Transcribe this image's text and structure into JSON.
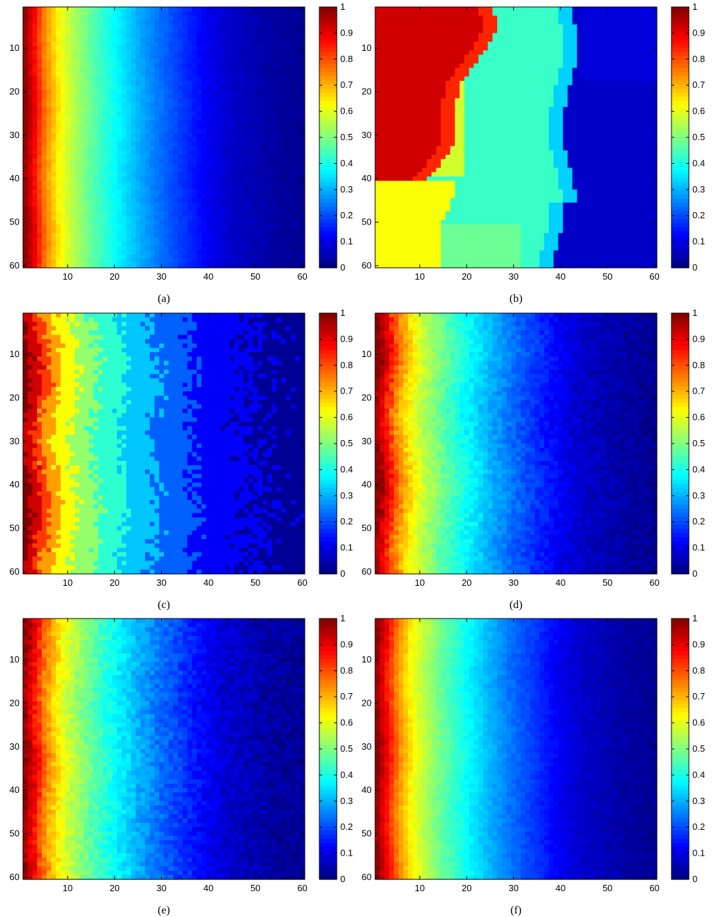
{
  "figure": {
    "panels": [
      {
        "caption": "(a)",
        "kind": "smooth",
        "noise": 0.01,
        "jitter": 0.2
      },
      {
        "caption": "(b)",
        "kind": "regions"
      },
      {
        "caption": "(c)",
        "kind": "coarse",
        "noise": 0.03,
        "jitter": 0.6
      },
      {
        "caption": "(d)",
        "kind": "smooth",
        "noise": 0.025,
        "jitter": 0.5
      },
      {
        "caption": "(e)",
        "kind": "smooth",
        "noise": 0.03,
        "jitter": 0.35
      },
      {
        "caption": "(f)",
        "kind": "smooth",
        "noise": 0.015,
        "jitter": 0.25
      }
    ]
  },
  "chart_data": {
    "type": "heatmap",
    "grid": {
      "rows": 60,
      "cols": 60
    },
    "x_ticks": [
      10,
      20,
      30,
      40,
      50,
      60
    ],
    "y_ticks": [
      10,
      20,
      30,
      40,
      50,
      60
    ],
    "xlim": [
      0.5,
      60.5
    ],
    "ylim": [
      0.5,
      60.5
    ],
    "y_direction": "top-down",
    "colorbar": {
      "colormap": "jet",
      "ticks": [
        0,
        0.1,
        0.2,
        0.3,
        0.4,
        0.5,
        0.6,
        0.7,
        0.8,
        0.9,
        1
      ],
      "tick_labels": [
        "0",
        "0.1",
        "0.2",
        "0.3",
        "0.4",
        "0.5",
        "0.6",
        "0.7",
        "0.8",
        "0.9",
        "1"
      ],
      "range": [
        0,
        1
      ],
      "placement": "right"
    },
    "column_profile": {
      "description_free": true,
      "x": [
        1,
        3,
        5,
        8,
        10,
        15,
        20,
        25,
        30,
        35,
        40,
        45,
        50,
        55,
        60
      ],
      "value": [
        0.98,
        0.88,
        0.76,
        0.64,
        0.58,
        0.47,
        0.38,
        0.3,
        0.23,
        0.17,
        0.11,
        0.07,
        0.05,
        0.03,
        0.02
      ]
    },
    "panel_b_regions": [
      {
        "col_range": [
          1,
          25
        ],
        "row_range": [
          1,
          40
        ],
        "value": 0.92
      },
      {
        "col_range": [
          10,
          43
        ],
        "row_range": [
          1,
          60
        ],
        "value": 0.43
      },
      {
        "col_range": [
          1,
          25
        ],
        "row_range": [
          40,
          60
        ],
        "value": 0.62
      },
      {
        "col_range": [
          42,
          60
        ],
        "row_range": [
          1,
          60
        ],
        "value": 0.07
      }
    ]
  }
}
